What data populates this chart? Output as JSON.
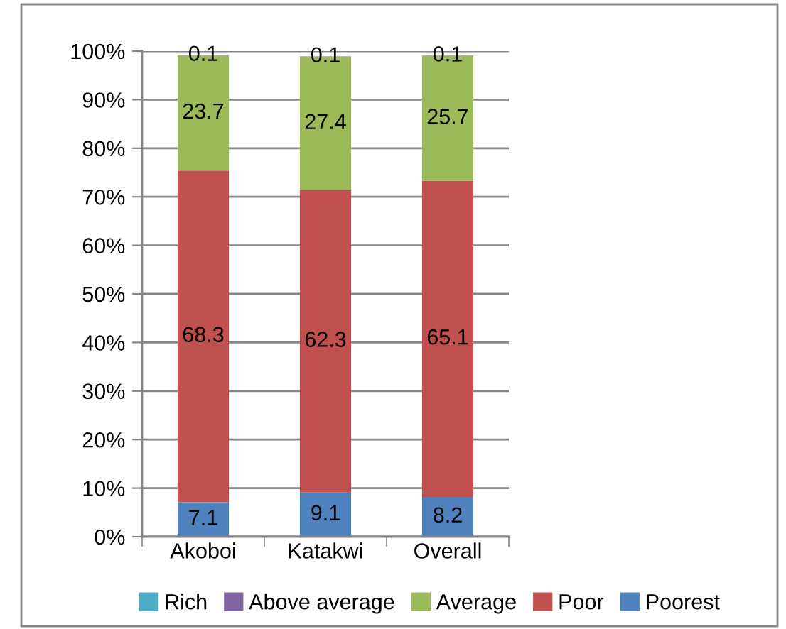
{
  "chart_data": {
    "type": "bar",
    "stacked": true,
    "categories": [
      "Akoboi",
      "Katakwi",
      "Overall"
    ],
    "series": [
      {
        "name": "Poorest",
        "color": "#4f81bd",
        "values": [
          7.1,
          9.1,
          8.2
        ]
      },
      {
        "name": "Poor",
        "color": "#c0504d",
        "values": [
          68.3,
          62.3,
          65.1
        ]
      },
      {
        "name": "Average",
        "color": "#9bbb59",
        "values": [
          23.7,
          27.4,
          25.7
        ]
      },
      {
        "name": "Above average",
        "color": "#8064a2",
        "values": [
          0.1,
          0.1,
          0.1
        ]
      },
      {
        "name": "Rich",
        "color": "#4bacc6",
        "values": [
          null,
          null,
          null
        ]
      }
    ],
    "ylim": [
      0,
      100
    ],
    "yticks": [
      {
        "value": 0,
        "label": "0%"
      },
      {
        "value": 10,
        "label": "10%"
      },
      {
        "value": 20,
        "label": "20%"
      },
      {
        "value": 30,
        "label": "30%"
      },
      {
        "value": 40,
        "label": "40%"
      },
      {
        "value": 50,
        "label": "50%"
      },
      {
        "value": 60,
        "label": "60%"
      },
      {
        "value": 70,
        "label": "70%"
      },
      {
        "value": 80,
        "label": "80%"
      },
      {
        "value": 90,
        "label": "90%"
      },
      {
        "value": 100,
        "label": "100%"
      }
    ],
    "grid": "y",
    "legend": "bottom",
    "data_labels": true
  }
}
